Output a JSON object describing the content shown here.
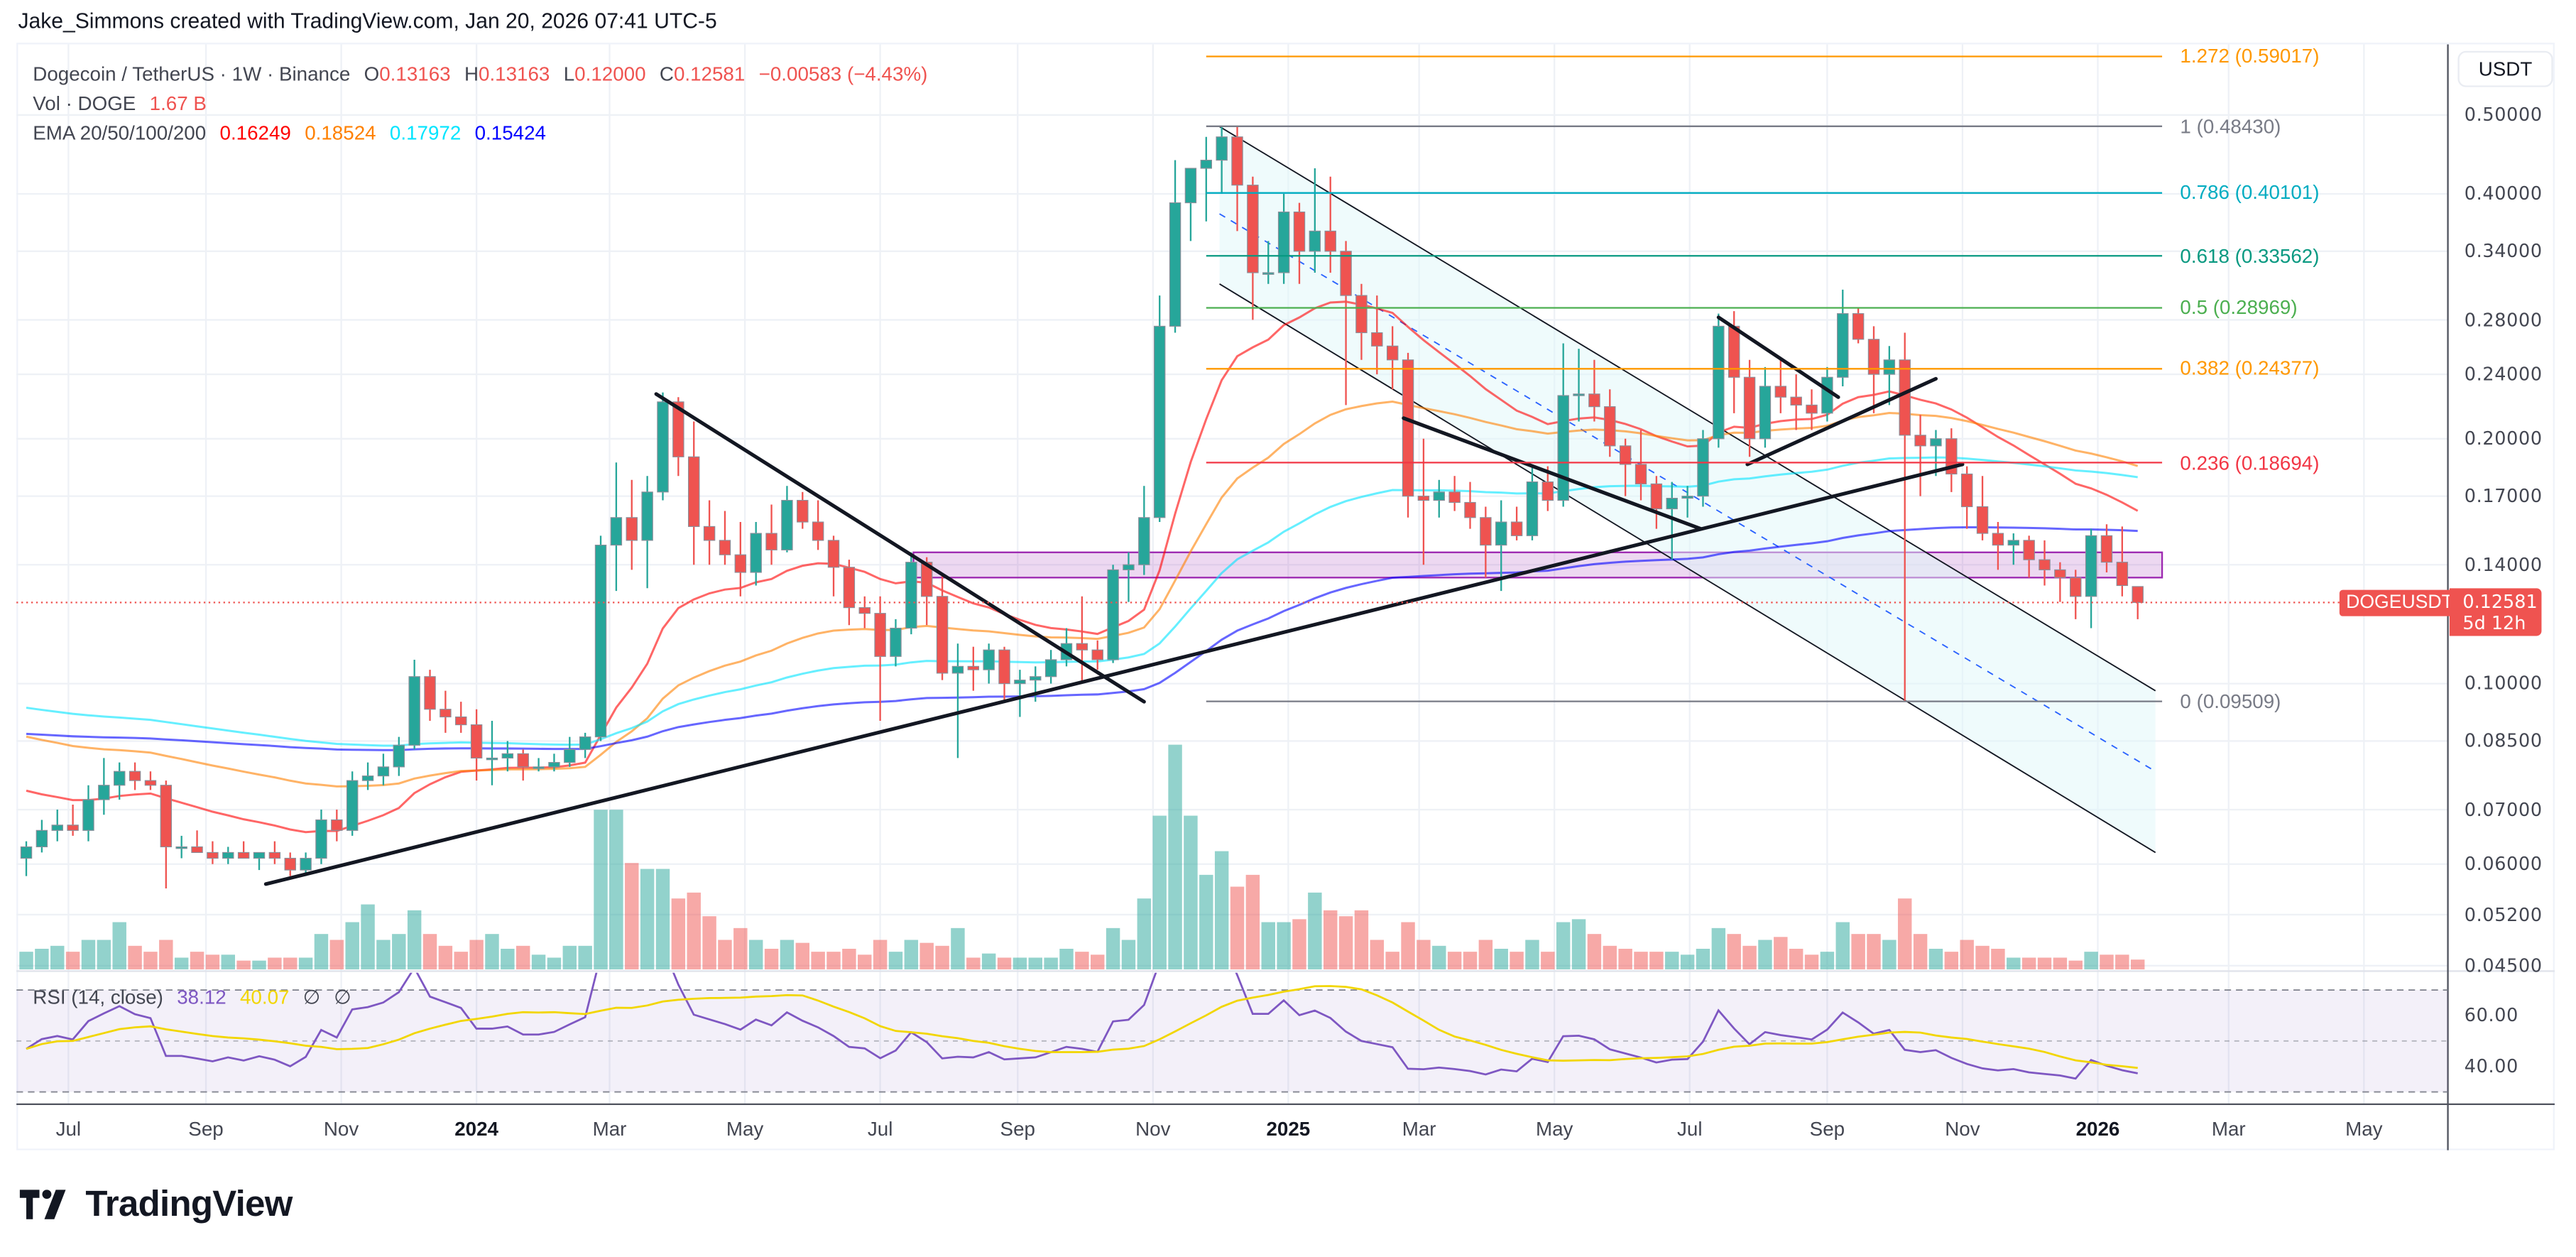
{
  "credit": "Jake_Simmons created with TradingView.com, Jan 20, 2026 07:41 UTC-5",
  "legend": {
    "symbol": "Dogecoin / TetherUS · 1W · Binance",
    "o_label": "O",
    "o": "0.13163",
    "h_label": "H",
    "h": "0.13163",
    "l_label": "L",
    "l": "0.12000",
    "c_label": "C",
    "c": "0.12581",
    "change": "−0.00583 (−4.43%)",
    "vol_label": "Vol · DOGE",
    "vol": "1.67 B",
    "ema_label": "EMA 20/50/100/200",
    "ema_values": [
      "0.16249",
      "0.18524",
      "0.17972",
      "0.15424"
    ],
    "ema_colors": [
      "#ff0000",
      "#ff8000",
      "#00e5ff",
      "#0000ff"
    ]
  },
  "rsi_legend": {
    "label": "RSI (14, close)",
    "rsi": "38.12",
    "ma": "40.07",
    "n1": "∅",
    "n2": "∅",
    "rsi_color": "#7e57c2",
    "ma_color": "#f2d600"
  },
  "price_axis": {
    "currency": "USDT",
    "ticks": [
      "0.50000",
      "0.40000",
      "0.34000",
      "0.28000",
      "0.24000",
      "0.20000",
      "0.17000",
      "0.14000",
      "0.10000",
      "0.08500",
      "0.07000",
      "0.06000",
      "0.05200",
      "0.04500"
    ],
    "rsi_ticks": [
      "60.00",
      "40.00"
    ],
    "symbol_tag": "DOGEUSDT",
    "last_price": "0.12581",
    "countdown": "5d 12h"
  },
  "time_axis": [
    {
      "label": "Jul",
      "date": "2023-07-01"
    },
    {
      "label": "Sep",
      "date": "2023-09-01"
    },
    {
      "label": "Nov",
      "date": "2023-11-01"
    },
    {
      "label": "2024",
      "date": "2024-01-01",
      "year": true
    },
    {
      "label": "Mar",
      "date": "2024-03-01"
    },
    {
      "label": "May",
      "date": "2024-05-01"
    },
    {
      "label": "Jul",
      "date": "2024-07-01"
    },
    {
      "label": "Sep",
      "date": "2024-09-01"
    },
    {
      "label": "Nov",
      "date": "2024-11-01"
    },
    {
      "label": "2025",
      "date": "2025-01-01",
      "year": true
    },
    {
      "label": "Mar",
      "date": "2025-03-01"
    },
    {
      "label": "May",
      "date": "2025-05-01"
    },
    {
      "label": "Jul",
      "date": "2025-07-01"
    },
    {
      "label": "Sep",
      "date": "2025-09-01"
    },
    {
      "label": "Nov",
      "date": "2025-11-01"
    },
    {
      "label": "2026",
      "date": "2026-01-01",
      "year": true
    },
    {
      "label": "Mar",
      "date": "2026-03-01"
    },
    {
      "label": "May",
      "date": "2026-05-01"
    }
  ],
  "brand": "TradingView",
  "colors": {
    "up": "#26a69a",
    "down": "#ef5350",
    "rsi": "#7e57c2",
    "rsi_ma": "#f2d600",
    "zone": "#9c27b0",
    "channel_fill": "#e0f7fa"
  },
  "chart_data": {
    "type": "candlestick",
    "interval": "1W",
    "y_scale": "log",
    "ylim": [
      0.045,
      0.59
    ],
    "grid": true,
    "first_week": "2023-06-12",
    "candle_fields": [
      "open",
      "high",
      "low",
      "close",
      "volume_B"
    ],
    "candles": [
      [
        0.061,
        0.064,
        0.058,
        0.063,
        3
      ],
      [
        0.063,
        0.068,
        0.062,
        0.066,
        3.5
      ],
      [
        0.066,
        0.07,
        0.064,
        0.067,
        4
      ],
      [
        0.067,
        0.071,
        0.065,
        0.066,
        3
      ],
      [
        0.066,
        0.075,
        0.064,
        0.072,
        5
      ],
      [
        0.072,
        0.081,
        0.069,
        0.075,
        5
      ],
      [
        0.075,
        0.08,
        0.072,
        0.078,
        8
      ],
      [
        0.078,
        0.08,
        0.074,
        0.076,
        4
      ],
      [
        0.076,
        0.078,
        0.074,
        0.075,
        3
      ],
      [
        0.075,
        0.076,
        0.056,
        0.063,
        5
      ],
      [
        0.063,
        0.065,
        0.061,
        0.063,
        2
      ],
      [
        0.063,
        0.066,
        0.062,
        0.062,
        3
      ],
      [
        0.062,
        0.064,
        0.06,
        0.061,
        2.5
      ],
      [
        0.061,
        0.063,
        0.06,
        0.062,
        2.5
      ],
      [
        0.062,
        0.064,
        0.061,
        0.061,
        1.5
      ],
      [
        0.061,
        0.062,
        0.059,
        0.062,
        1.5
      ],
      [
        0.062,
        0.064,
        0.06,
        0.061,
        2
      ],
      [
        0.061,
        0.062,
        0.058,
        0.059,
        2
      ],
      [
        0.059,
        0.062,
        0.058,
        0.061,
        2
      ],
      [
        0.061,
        0.07,
        0.06,
        0.068,
        6
      ],
      [
        0.068,
        0.07,
        0.064,
        0.066,
        5
      ],
      [
        0.066,
        0.078,
        0.065,
        0.076,
        8
      ],
      [
        0.076,
        0.08,
        0.074,
        0.077,
        11
      ],
      [
        0.077,
        0.082,
        0.075,
        0.079,
        5
      ],
      [
        0.079,
        0.086,
        0.077,
        0.084,
        6
      ],
      [
        0.084,
        0.107,
        0.083,
        0.102,
        10
      ],
      [
        0.102,
        0.104,
        0.09,
        0.093,
        6
      ],
      [
        0.093,
        0.098,
        0.087,
        0.091,
        4
      ],
      [
        0.091,
        0.095,
        0.087,
        0.089,
        3
      ],
      [
        0.089,
        0.093,
        0.076,
        0.081,
        5
      ],
      [
        0.081,
        0.09,
        0.075,
        0.081,
        6
      ],
      [
        0.081,
        0.085,
        0.078,
        0.082,
        3.5
      ],
      [
        0.082,
        0.083,
        0.076,
        0.079,
        4
      ],
      [
        0.079,
        0.081,
        0.078,
        0.079,
        2.5
      ],
      [
        0.079,
        0.082,
        0.078,
        0.08,
        2
      ],
      [
        0.08,
        0.086,
        0.079,
        0.083,
        4
      ],
      [
        0.083,
        0.087,
        0.081,
        0.086,
        4
      ],
      [
        0.086,
        0.152,
        0.085,
        0.148,
        27
      ],
      [
        0.148,
        0.187,
        0.13,
        0.16,
        27
      ],
      [
        0.16,
        0.178,
        0.138,
        0.15,
        18
      ],
      [
        0.15,
        0.18,
        0.131,
        0.172,
        17
      ],
      [
        0.172,
        0.228,
        0.168,
        0.222,
        17
      ],
      [
        0.222,
        0.225,
        0.18,
        0.19,
        12
      ],
      [
        0.19,
        0.21,
        0.14,
        0.156,
        13
      ],
      [
        0.156,
        0.168,
        0.14,
        0.15,
        9
      ],
      [
        0.15,
        0.163,
        0.14,
        0.144,
        5
      ],
      [
        0.144,
        0.158,
        0.128,
        0.137,
        7
      ],
      [
        0.137,
        0.158,
        0.132,
        0.153,
        5
      ],
      [
        0.153,
        0.166,
        0.14,
        0.146,
        3.5
      ],
      [
        0.146,
        0.175,
        0.145,
        0.168,
        5
      ],
      [
        0.168,
        0.172,
        0.155,
        0.158,
        4.5
      ],
      [
        0.158,
        0.168,
        0.146,
        0.15,
        3
      ],
      [
        0.15,
        0.152,
        0.128,
        0.139,
        3
      ],
      [
        0.139,
        0.142,
        0.118,
        0.124,
        3.5
      ],
      [
        0.124,
        0.128,
        0.117,
        0.122,
        2.5
      ],
      [
        0.122,
        0.128,
        0.09,
        0.108,
        5
      ],
      [
        0.108,
        0.12,
        0.105,
        0.117,
        3
      ],
      [
        0.117,
        0.145,
        0.115,
        0.141,
        5
      ],
      [
        0.141,
        0.143,
        0.118,
        0.128,
        4.5
      ],
      [
        0.128,
        0.136,
        0.101,
        0.103,
        4
      ],
      [
        0.103,
        0.112,
        0.081,
        0.105,
        7
      ],
      [
        0.105,
        0.111,
        0.098,
        0.104,
        2
      ],
      [
        0.104,
        0.112,
        0.1,
        0.11,
        2.7
      ],
      [
        0.11,
        0.111,
        0.095,
        0.1,
        2
      ],
      [
        0.1,
        0.104,
        0.091,
        0.101,
        2
      ],
      [
        0.101,
        0.105,
        0.095,
        0.102,
        2
      ],
      [
        0.102,
        0.11,
        0.1,
        0.107,
        2
      ],
      [
        0.107,
        0.117,
        0.105,
        0.112,
        3.5
      ],
      [
        0.112,
        0.128,
        0.1,
        0.11,
        3
      ],
      [
        0.11,
        0.113,
        0.104,
        0.107,
        2.5
      ],
      [
        0.107,
        0.14,
        0.106,
        0.138,
        7
      ],
      [
        0.138,
        0.145,
        0.126,
        0.14,
        5
      ],
      [
        0.14,
        0.175,
        0.136,
        0.16,
        12
      ],
      [
        0.16,
        0.3,
        0.158,
        0.275,
        26
      ],
      [
        0.275,
        0.44,
        0.27,
        0.39,
        38
      ],
      [
        0.39,
        0.43,
        0.35,
        0.43,
        26
      ],
      [
        0.43,
        0.47,
        0.37,
        0.44,
        16
      ],
      [
        0.44,
        0.485,
        0.4,
        0.47,
        20
      ],
      [
        0.47,
        0.485,
        0.36,
        0.41,
        14
      ],
      [
        0.41,
        0.42,
        0.28,
        0.32,
        16
      ],
      [
        0.32,
        0.35,
        0.31,
        0.32,
        8
      ],
      [
        0.32,
        0.4,
        0.31,
        0.38,
        8
      ],
      [
        0.38,
        0.39,
        0.31,
        0.34,
        8.5
      ],
      [
        0.34,
        0.43,
        0.32,
        0.36,
        13
      ],
      [
        0.36,
        0.42,
        0.32,
        0.34,
        10
      ],
      [
        0.34,
        0.35,
        0.22,
        0.3,
        9
      ],
      [
        0.3,
        0.31,
        0.25,
        0.27,
        10
      ],
      [
        0.27,
        0.3,
        0.24,
        0.26,
        5
      ],
      [
        0.26,
        0.275,
        0.23,
        0.25,
        3
      ],
      [
        0.25,
        0.255,
        0.16,
        0.17,
        8
      ],
      [
        0.17,
        0.2,
        0.14,
        0.168,
        5
      ],
      [
        0.168,
        0.178,
        0.16,
        0.172,
        4
      ],
      [
        0.172,
        0.18,
        0.163,
        0.167,
        3
      ],
      [
        0.167,
        0.177,
        0.155,
        0.16,
        3
      ],
      [
        0.16,
        0.165,
        0.135,
        0.148,
        5
      ],
      [
        0.148,
        0.168,
        0.13,
        0.158,
        3.5
      ],
      [
        0.158,
        0.165,
        0.15,
        0.152,
        3
      ],
      [
        0.152,
        0.185,
        0.15,
        0.177,
        5
      ],
      [
        0.177,
        0.185,
        0.163,
        0.168,
        3
      ],
      [
        0.168,
        0.262,
        0.165,
        0.226,
        8
      ],
      [
        0.226,
        0.258,
        0.21,
        0.227,
        8.5
      ],
      [
        0.227,
        0.25,
        0.21,
        0.219,
        6
      ],
      [
        0.219,
        0.23,
        0.19,
        0.196,
        4
      ],
      [
        0.196,
        0.2,
        0.17,
        0.186,
        3.5
      ],
      [
        0.186,
        0.205,
        0.168,
        0.176,
        3
      ],
      [
        0.176,
        0.18,
        0.155,
        0.164,
        3
      ],
      [
        0.164,
        0.177,
        0.142,
        0.169,
        3
      ],
      [
        0.169,
        0.175,
        0.16,
        0.17,
        2.5
      ],
      [
        0.17,
        0.205,
        0.165,
        0.2,
        3.5
      ],
      [
        0.2,
        0.285,
        0.195,
        0.275,
        7
      ],
      [
        0.275,
        0.287,
        0.215,
        0.238,
        6
      ],
      [
        0.238,
        0.25,
        0.19,
        0.2,
        4
      ],
      [
        0.2,
        0.245,
        0.195,
        0.232,
        5
      ],
      [
        0.232,
        0.25,
        0.215,
        0.225,
        5.5
      ],
      [
        0.225,
        0.24,
        0.205,
        0.22,
        3.5
      ],
      [
        0.22,
        0.23,
        0.205,
        0.215,
        2.5
      ],
      [
        0.215,
        0.245,
        0.21,
        0.238,
        3
      ],
      [
        0.238,
        0.305,
        0.232,
        0.285,
        8
      ],
      [
        0.285,
        0.29,
        0.262,
        0.265,
        6
      ],
      [
        0.265,
        0.275,
        0.215,
        0.24,
        6
      ],
      [
        0.24,
        0.26,
        0.22,
        0.25,
        5
      ],
      [
        0.25,
        0.27,
        0.095,
        0.202,
        12
      ],
      [
        0.202,
        0.214,
        0.17,
        0.196,
        6
      ],
      [
        0.196,
        0.205,
        0.18,
        0.2,
        3.5
      ],
      [
        0.2,
        0.206,
        0.172,
        0.181,
        3
      ],
      [
        0.181,
        0.185,
        0.155,
        0.165,
        5
      ],
      [
        0.165,
        0.18,
        0.15,
        0.153,
        4
      ],
      [
        0.153,
        0.158,
        0.138,
        0.148,
        3.5
      ],
      [
        0.148,
        0.153,
        0.14,
        0.15,
        2
      ],
      [
        0.15,
        0.152,
        0.135,
        0.142,
        2
      ],
      [
        0.142,
        0.15,
        0.132,
        0.138,
        2
      ],
      [
        0.138,
        0.141,
        0.126,
        0.135,
        2
      ],
      [
        0.135,
        0.138,
        0.12,
        0.128,
        1.5
      ],
      [
        0.128,
        0.155,
        0.117,
        0.152,
        3
      ],
      [
        0.152,
        0.157,
        0.137,
        0.141,
        2.5
      ],
      [
        0.141,
        0.156,
        0.128,
        0.132,
        2.5
      ],
      [
        0.13163,
        0.13163,
        0.12,
        0.12581,
        1.67
      ]
    ],
    "ema_periods": [
      20,
      50,
      100,
      200
    ],
    "rsi": {
      "length": 14,
      "ma_length": 14,
      "bands": [
        70,
        50,
        30
      ]
    },
    "fib": {
      "from": "2024-11-25",
      "to": "2026-01-30",
      "levels": [
        {
          "label": "1.272 (0.59017)",
          "price": 0.59017,
          "color": "#ff9800"
        },
        {
          "label": "1 (0.48430)",
          "price": 0.4843,
          "color": "#787b86"
        },
        {
          "label": "0.786 (0.40101)",
          "price": 0.40101,
          "color": "#00acc1"
        },
        {
          "label": "0.618 (0.33562)",
          "price": 0.33562,
          "color": "#089981"
        },
        {
          "label": "0.5 (0.28969)",
          "price": 0.28969,
          "color": "#4caf50"
        },
        {
          "label": "0.382 (0.24377)",
          "price": 0.24377,
          "color": "#ff9800"
        },
        {
          "label": "0.236 (0.18694)",
          "price": 0.18694,
          "color": "#f23645"
        },
        {
          "label": "0 (0.09509)",
          "price": 0.09509,
          "color": "#787b86"
        }
      ]
    },
    "zone": {
      "from": "2024-07-16",
      "to": "2026-01-30",
      "low": 0.135,
      "high": 0.145
    },
    "trendlines": [
      {
        "from": [
          "2023-09-28",
          0.0567
        ],
        "to": [
          "2025-11-01",
          0.186
        ]
      },
      {
        "from": [
          "2024-03-22",
          0.227
        ],
        "to": [
          "2024-10-28",
          0.095
        ]
      },
      {
        "from": [
          "2025-02-22",
          0.212
        ],
        "to": [
          "2025-07-06",
          0.155
        ]
      },
      {
        "from": [
          "2025-07-14",
          0.282
        ],
        "to": [
          "2025-09-06",
          0.225
        ]
      },
      {
        "from": [
          "2025-07-27",
          0.186
        ],
        "to": [
          "2025-10-20",
          0.237
        ]
      }
    ],
    "channel": {
      "upper": {
        "from": [
          "2024-12-01",
          0.484
        ],
        "to": [
          "2026-01-27",
          0.098
        ]
      },
      "middle": {
        "from": [
          "2024-12-01",
          0.378
        ],
        "to": [
          "2026-01-27",
          0.078
        ]
      },
      "lower": {
        "from": [
          "2024-12-01",
          0.31
        ],
        "to": [
          "2026-01-27",
          0.062
        ]
      }
    }
  }
}
